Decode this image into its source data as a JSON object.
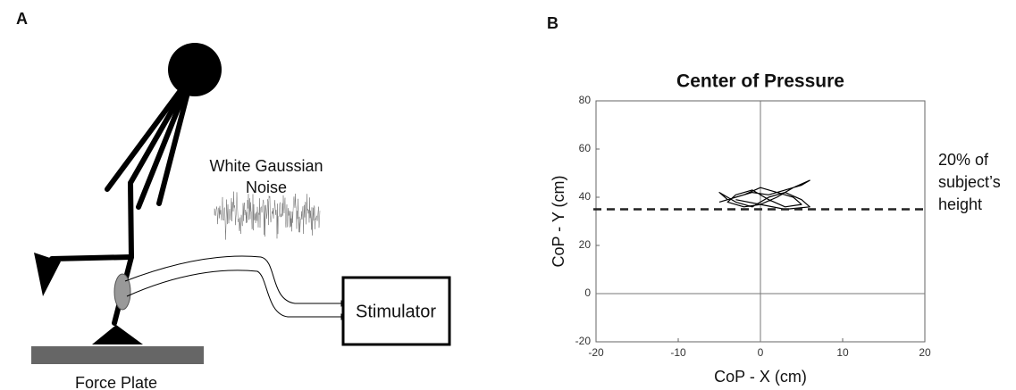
{
  "panel_a": {
    "label": "A",
    "noise_label": [
      "White Gaussian",
      "Noise"
    ],
    "device": "Stimulator",
    "plate": "Force Plate"
  },
  "chart_data": {
    "type": "line",
    "panel_label": "B",
    "title": "Center of Pressure",
    "x_label": "CoP - X (cm)",
    "y_label": "CoP - Y (cm)",
    "x": [
      -5,
      -3,
      -1,
      1,
      3,
      5,
      6,
      4,
      2,
      0,
      -2,
      -4,
      -3,
      -1,
      1,
      3,
      5,
      4,
      2,
      0,
      -2,
      -4,
      -5,
      -3,
      -1,
      1,
      3,
      5,
      6,
      3,
      0,
      -3
    ],
    "series": [
      {
        "color": "#000000",
        "values": [
          38,
          40,
          42,
          41,
          43,
          45,
          47,
          44,
          40,
          37,
          36,
          38,
          41,
          43,
          39,
          36,
          37,
          40,
          42,
          44,
          41,
          39,
          42,
          38,
          36,
          40,
          42,
          39,
          36,
          35,
          37,
          39
        ]
      }
    ],
    "reference_line": {
      "value": 35,
      "label": [
        "20% of",
        "subject’s",
        "height"
      ],
      "style": "dashed"
    },
    "xlim": [
      -20,
      20
    ],
    "ylim": [
      -20,
      80
    ],
    "xticks": [
      -20,
      -10,
      0,
      10,
      20
    ],
    "yticks": [
      -20,
      0,
      20,
      40,
      60,
      80
    ],
    "zero_lines": true
  }
}
